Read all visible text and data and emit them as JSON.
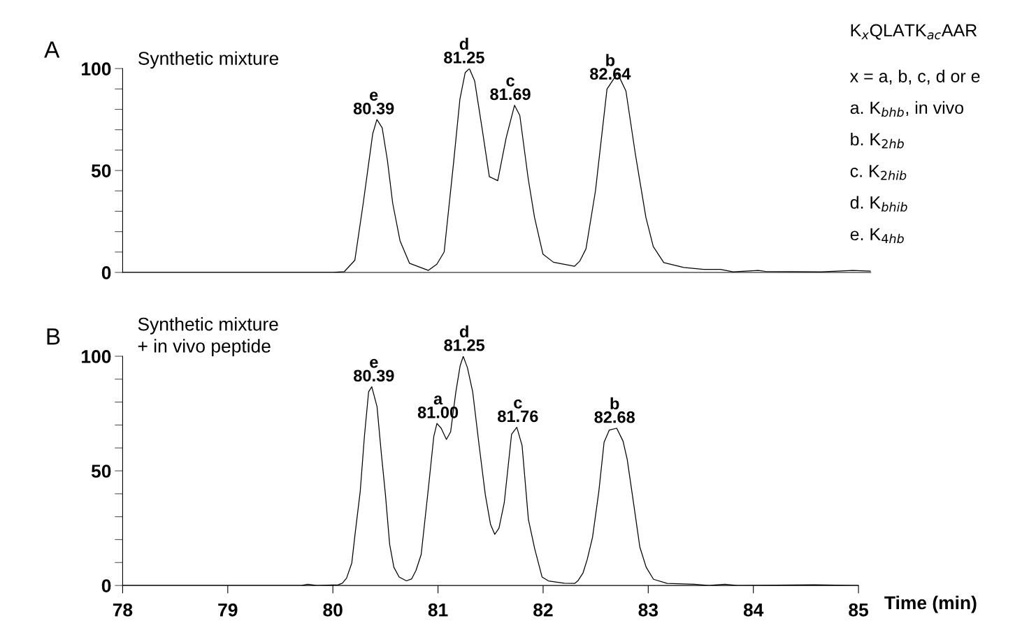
{
  "chart_data": [
    {
      "type": "line",
      "title": "Synthetic mixture",
      "xlim": [
        78,
        85.12
      ],
      "xticks": [
        78,
        79,
        80,
        81,
        82,
        83,
        84,
        85
      ],
      "ylim": [
        0,
        100
      ],
      "tick_labels": "y",
      "grid": false,
      "legend": false,
      "marker": "none",
      "line_style": "solid",
      "yticks": [
        0,
        {
          "value": 10,
          "label": null
        },
        {
          "value": 20,
          "label": null
        },
        {
          "value": 30,
          "label": null
        },
        {
          "value": 40,
          "label": null
        },
        50,
        {
          "value": 60,
          "label": null
        },
        {
          "value": 70,
          "label": null
        },
        {
          "value": 80,
          "label": null
        },
        {
          "value": 90,
          "label": null
        },
        100
      ],
      "series": [
        {
          "color": "#000000",
          "x": [
            78,
            80.0,
            80.11,
            80.21,
            80.29,
            80.38,
            80.42,
            80.47,
            80.52,
            80.57,
            80.64,
            80.73,
            80.91,
            80.99,
            81.06,
            81.15,
            81.21,
            81.26,
            81.3,
            81.35,
            81.42,
            81.49,
            81.57,
            81.65,
            81.73,
            81.78,
            81.86,
            81.92,
            82.0,
            82.1,
            82.3,
            82.35,
            82.41,
            82.5,
            82.61,
            82.71,
            82.79,
            82.88,
            82.98,
            83.05,
            83.15,
            83.34,
            83.53,
            83.69,
            83.81,
            84.05,
            84.12,
            84.65,
            84.95,
            85.12
          ],
          "values": [
            0,
            0,
            0.4,
            6,
            34,
            68,
            75,
            71,
            55,
            34,
            15.5,
            4.5,
            1,
            4,
            10,
            54,
            85,
            98,
            100,
            94,
            71,
            47,
            45,
            66,
            82,
            77,
            46,
            27,
            9,
            5,
            3,
            5.5,
            11.6,
            40,
            90,
            97.7,
            89,
            58,
            27,
            12.7,
            4.8,
            2.4,
            1.5,
            1.5,
            0.3,
            1,
            0.5,
            0.3,
            1,
            0.6
          ]
        }
      ],
      "annotations": [
        "A",
        "K$_{x}$QLATK$_{ac}$AAR",
        "x = a, b, c, d or e",
        "a. K$_{bhb}$, in vivo",
        "b. K$_{2hb}$",
        "c. K$_{2hib}$",
        "d. K$_{bhib}$",
        "e. K$_{4hb}$",
        {
          "text": "e\n80.39",
          "x": 80.39,
          "y": 75
        },
        {
          "text": "d\n81.25",
          "x": 81.25,
          "y": 100
        },
        {
          "text": "c\n81.69",
          "x": 81.69,
          "y": 82
        },
        {
          "text": "b\n82.64",
          "x": 82.64,
          "y": 92
        }
      ]
    },
    {
      "type": "line",
      "title": "Synthetic mixture\n+ in vivo peptide",
      "xlabel": "Time (min)",
      "xlim": [
        78,
        85
      ],
      "ylim": [
        0,
        100
      ],
      "grid": false,
      "legend": false,
      "marker": "none",
      "line_style": "solid",
      "xticks": [
        78,
        79,
        80,
        81,
        82,
        83,
        84,
        85
      ],
      "yticks": [
        0,
        {
          "value": 10,
          "label": null
        },
        {
          "value": 20,
          "label": null
        },
        {
          "value": 30,
          "label": null
        },
        {
          "value": 40,
          "label": null
        },
        50,
        {
          "value": 60,
          "label": null
        },
        {
          "value": 70,
          "label": null
        },
        {
          "value": 80,
          "label": null
        },
        {
          "value": 90,
          "label": null
        },
        100
      ],
      "series": [
        {
          "color": "#000000",
          "x": [
            78,
            79.7,
            79.76,
            79.85,
            80.05,
            80.09,
            80.13,
            80.18,
            80.21,
            80.26,
            80.3,
            80.34,
            80.37,
            80.42,
            80.46,
            80.5,
            80.54,
            80.58,
            80.63,
            80.7,
            80.75,
            80.79,
            80.84,
            80.91,
            80.96,
            80.99,
            81.03,
            81.08,
            81.12,
            81.17,
            81.21,
            81.24,
            81.28,
            81.33,
            81.39,
            81.45,
            81.5,
            81.54,
            81.58,
            81.63,
            81.7,
            81.75,
            81.8,
            81.86,
            81.92,
            81.99,
            82.05,
            82.2,
            82.3,
            82.33,
            82.38,
            82.42,
            82.47,
            82.53,
            82.58,
            82.63,
            82.7,
            82.76,
            82.8,
            82.86,
            82.92,
            82.98,
            83.05,
            83.18,
            83.44,
            83.58,
            83.73,
            83.85,
            84.58,
            85.0
          ],
          "values": [
            0,
            0,
            0.5,
            0,
            0.3,
            1,
            3.2,
            9.8,
            22,
            41,
            65,
            84.5,
            86.7,
            78,
            58,
            39.6,
            18,
            8,
            3.7,
            2,
            2.9,
            6.5,
            13.5,
            43,
            65,
            70.7,
            68.6,
            63.7,
            67,
            84.5,
            95.7,
            100,
            95,
            84.5,
            61.6,
            39.6,
            26.6,
            22.3,
            25,
            36,
            66,
            69,
            61,
            28.8,
            16,
            3.7,
            2,
            1,
            0.9,
            2,
            5.5,
            11.4,
            21,
            41,
            62.5,
            67.8,
            68.6,
            63,
            55,
            36,
            16.8,
            8,
            2.7,
            0.9,
            0.5,
            0,
            0.5,
            0,
            0.3,
            0
          ]
        }
      ],
      "annotations": [
        "B",
        {
          "text": "e\n80.39",
          "x": 80.39,
          "y": 86.7
        },
        {
          "text": "a\n81.00",
          "x": 81.0,
          "y": 70.7
        },
        {
          "text": "d\n81.25",
          "x": 81.25,
          "y": 100
        },
        {
          "text": "c\n81.76",
          "x": 81.76,
          "y": 69
        },
        {
          "text": "b\n82.68",
          "x": 82.68,
          "y": 68.6
        }
      ]
    }
  ]
}
